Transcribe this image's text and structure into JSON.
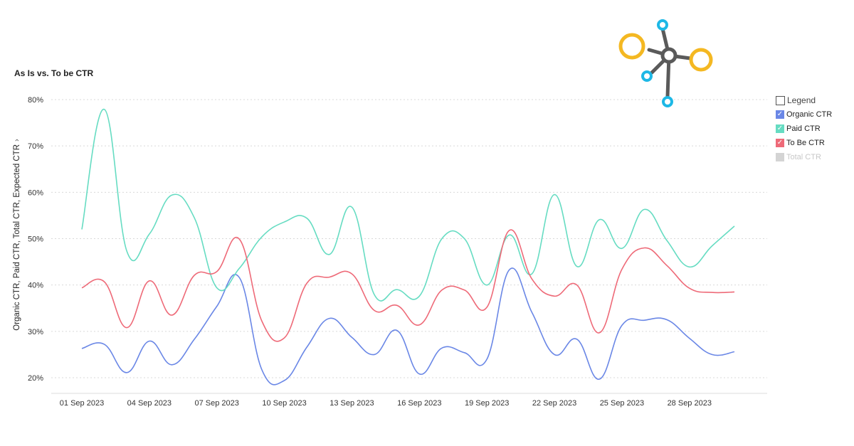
{
  "title": "As Is vs. To be CTR",
  "ylabel": "Organic CTR, Paid CTR, Total CTR, Expected CTR",
  "legend": {
    "header": "Legend",
    "items": [
      {
        "label": "Organic CTR",
        "color": "#6a87e6",
        "checked": true
      },
      {
        "label": "Paid CTR",
        "color": "#66dcc2",
        "checked": true
      },
      {
        "label": "To Be CTR",
        "color": "#ee6a78",
        "checked": true
      },
      {
        "label": "Total CTR",
        "color": "#d4d4d4",
        "checked": false
      }
    ]
  },
  "chart_data": {
    "type": "line",
    "x": [
      "01 Sep 2023",
      "02 Sep 2023",
      "03 Sep 2023",
      "04 Sep 2023",
      "05 Sep 2023",
      "06 Sep 2023",
      "07 Sep 2023",
      "08 Sep 2023",
      "09 Sep 2023",
      "10 Sep 2023",
      "11 Sep 2023",
      "12 Sep 2023",
      "13 Sep 2023",
      "14 Sep 2023",
      "15 Sep 2023",
      "16 Sep 2023",
      "17 Sep 2023",
      "18 Sep 2023",
      "19 Sep 2023",
      "20 Sep 2023",
      "21 Sep 2023",
      "22 Sep 2023",
      "23 Sep 2023",
      "24 Sep 2023",
      "25 Sep 2023",
      "26 Sep 2023",
      "27 Sep 2023",
      "28 Sep 2023",
      "29 Sep 2023",
      "30 Sep 2023"
    ],
    "xticks": [
      "01 Sep 2023",
      "04 Sep 2023",
      "07 Sep 2023",
      "10 Sep 2023",
      "13 Sep 2023",
      "16 Sep 2023",
      "19 Sep 2023",
      "22 Sep 2023",
      "25 Sep 2023",
      "28 Sep 2023"
    ],
    "yticks": [
      "20%",
      "30%",
      "40%",
      "50%",
      "60%",
      "70%",
      "80%"
    ],
    "ylim": [
      18,
      82
    ],
    "series": [
      {
        "name": "Organic CTR",
        "color": "#6a87e6",
        "values": [
          26.3,
          27.2,
          21.1,
          27.9,
          22.8,
          28.3,
          35.4,
          41.6,
          21.7,
          19.4,
          26.6,
          32.8,
          28.7,
          25.0,
          30.2,
          20.8,
          26.4,
          25.4,
          24.0,
          43.3,
          34.1,
          25.0,
          28.3,
          19.7,
          31.3,
          32.4,
          32.5,
          28.5,
          25.0,
          25.6
        ]
      },
      {
        "name": "Paid CTR",
        "color": "#66dcc2",
        "values": [
          52.0,
          77.9,
          47.3,
          51.0,
          59.4,
          54.5,
          39.4,
          43.6,
          50.4,
          53.6,
          54.4,
          46.6,
          56.8,
          37.9,
          39.0,
          37.6,
          50.0,
          50.0,
          40.0,
          50.8,
          42.4,
          59.5,
          44.0,
          54.1,
          47.9,
          56.3,
          49.6,
          43.9,
          48.4,
          52.7
        ]
      },
      {
        "name": "To Be CTR",
        "color": "#ee6a78",
        "values": [
          39.4,
          40.7,
          30.8,
          40.9,
          33.5,
          42.1,
          42.9,
          49.9,
          32.2,
          28.6,
          40.4,
          41.7,
          42.4,
          34.5,
          35.6,
          31.4,
          38.9,
          38.9,
          35.2,
          51.8,
          41.3,
          37.6,
          40.0,
          29.7,
          43.4,
          48.0,
          44.2,
          39.3,
          38.4,
          38.5
        ]
      }
    ],
    "grid": true,
    "legend_position": "right"
  }
}
